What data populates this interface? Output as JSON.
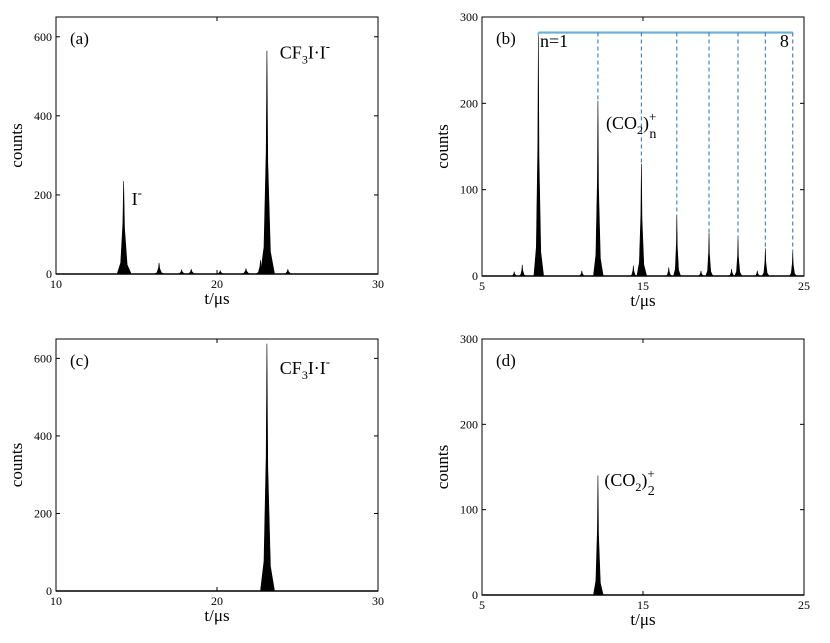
{
  "chart_data": [
    {
      "panel": "(a)",
      "type": "line",
      "xlabel": "t/μs",
      "ylabel": "counts",
      "xlim": [
        10,
        30
      ],
      "ylim": [
        0,
        650
      ],
      "xticks": [
        10,
        20,
        30
      ],
      "yticks": [
        0,
        200,
        400,
        600
      ],
      "peaks": [
        {
          "x": 14.2,
          "y": 235
        },
        {
          "x": 16.4,
          "y": 28
        },
        {
          "x": 17.8,
          "y": 10
        },
        {
          "x": 18.4,
          "y": 12
        },
        {
          "x": 20.2,
          "y": 8
        },
        {
          "x": 21.8,
          "y": 14
        },
        {
          "x": 22.7,
          "y": 35
        },
        {
          "x": 23.1,
          "y": 565
        },
        {
          "x": 24.4,
          "y": 12
        }
      ],
      "annotations": [
        {
          "text": "I",
          "sup": "-",
          "x": 14.7,
          "y": 175
        },
        {
          "text": "CF",
          "sub": "3",
          "text2": "I·I",
          "sup": "-",
          "x": 23.9,
          "y": 545
        }
      ]
    },
    {
      "panel": "(b)",
      "type": "line",
      "xlabel": "t/μs",
      "ylabel": "counts",
      "xlim": [
        5,
        25
      ],
      "ylim": [
        0,
        300
      ],
      "xticks": [
        5,
        15,
        25
      ],
      "xtick_labels": [
        "5",
        "15",
        "25"
      ],
      "yticks": [
        0,
        100,
        200,
        300
      ],
      "peaks": [
        {
          "x": 7.0,
          "y": 5
        },
        {
          "x": 7.5,
          "y": 13
        },
        {
          "x": 8.5,
          "y": 278
        },
        {
          "x": 11.2,
          "y": 6
        },
        {
          "x": 12.2,
          "y": 203
        },
        {
          "x": 14.4,
          "y": 12
        },
        {
          "x": 14.9,
          "y": 130
        },
        {
          "x": 16.6,
          "y": 10
        },
        {
          "x": 17.1,
          "y": 71
        },
        {
          "x": 18.6,
          "y": 6
        },
        {
          "x": 19.1,
          "y": 50
        },
        {
          "x": 20.5,
          "y": 8
        },
        {
          "x": 20.9,
          "y": 44
        },
        {
          "x": 22.1,
          "y": 6
        },
        {
          "x": 22.6,
          "y": 32
        },
        {
          "x": 24.3,
          "y": 28
        }
      ],
      "cluster_markers": [
        8.5,
        12.2,
        14.9,
        17.1,
        19.1,
        20.9,
        22.6,
        24.3
      ],
      "marker_line_y": 282,
      "annotations": [
        {
          "text": "n=1",
          "x": 8.6,
          "y": 265
        },
        {
          "text": "8",
          "x": 23.5,
          "y": 265
        },
        {
          "text": "(CO",
          "sub": "2",
          "text2": ")",
          "sup": "+",
          "sub2": "n",
          "x": 12.7,
          "y": 170
        }
      ]
    },
    {
      "panel": "(c)",
      "type": "line",
      "xlabel": "t/μs",
      "ylabel": "counts",
      "xlim": [
        10,
        30
      ],
      "ylim": [
        0,
        650
      ],
      "xticks": [
        10,
        20,
        30
      ],
      "yticks": [
        0,
        200,
        400,
        600
      ],
      "peaks": [
        {
          "x": 23.1,
          "y": 638
        }
      ],
      "annotations": [
        {
          "text": "CF",
          "sub": "3",
          "text2": "I·I",
          "sup": "-",
          "x": 23.9,
          "y": 560
        }
      ]
    },
    {
      "panel": "(d)",
      "type": "line",
      "xlabel": "t/μs",
      "ylabel": "counts",
      "xlim": [
        5,
        25
      ],
      "ylim": [
        0,
        300
      ],
      "xticks": [
        5,
        15,
        25
      ],
      "xtick_labels": [
        "5",
        "15",
        "25"
      ],
      "yticks": [
        0,
        100,
        200,
        300
      ],
      "peaks": [
        {
          "x": 12.2,
          "y": 140
        }
      ],
      "annotations": [
        {
          "text": "(CO",
          "sub": "2",
          "text2": ")",
          "sup": "+",
          "sub2": "2",
          "x": 12.6,
          "y": 128
        }
      ]
    }
  ]
}
